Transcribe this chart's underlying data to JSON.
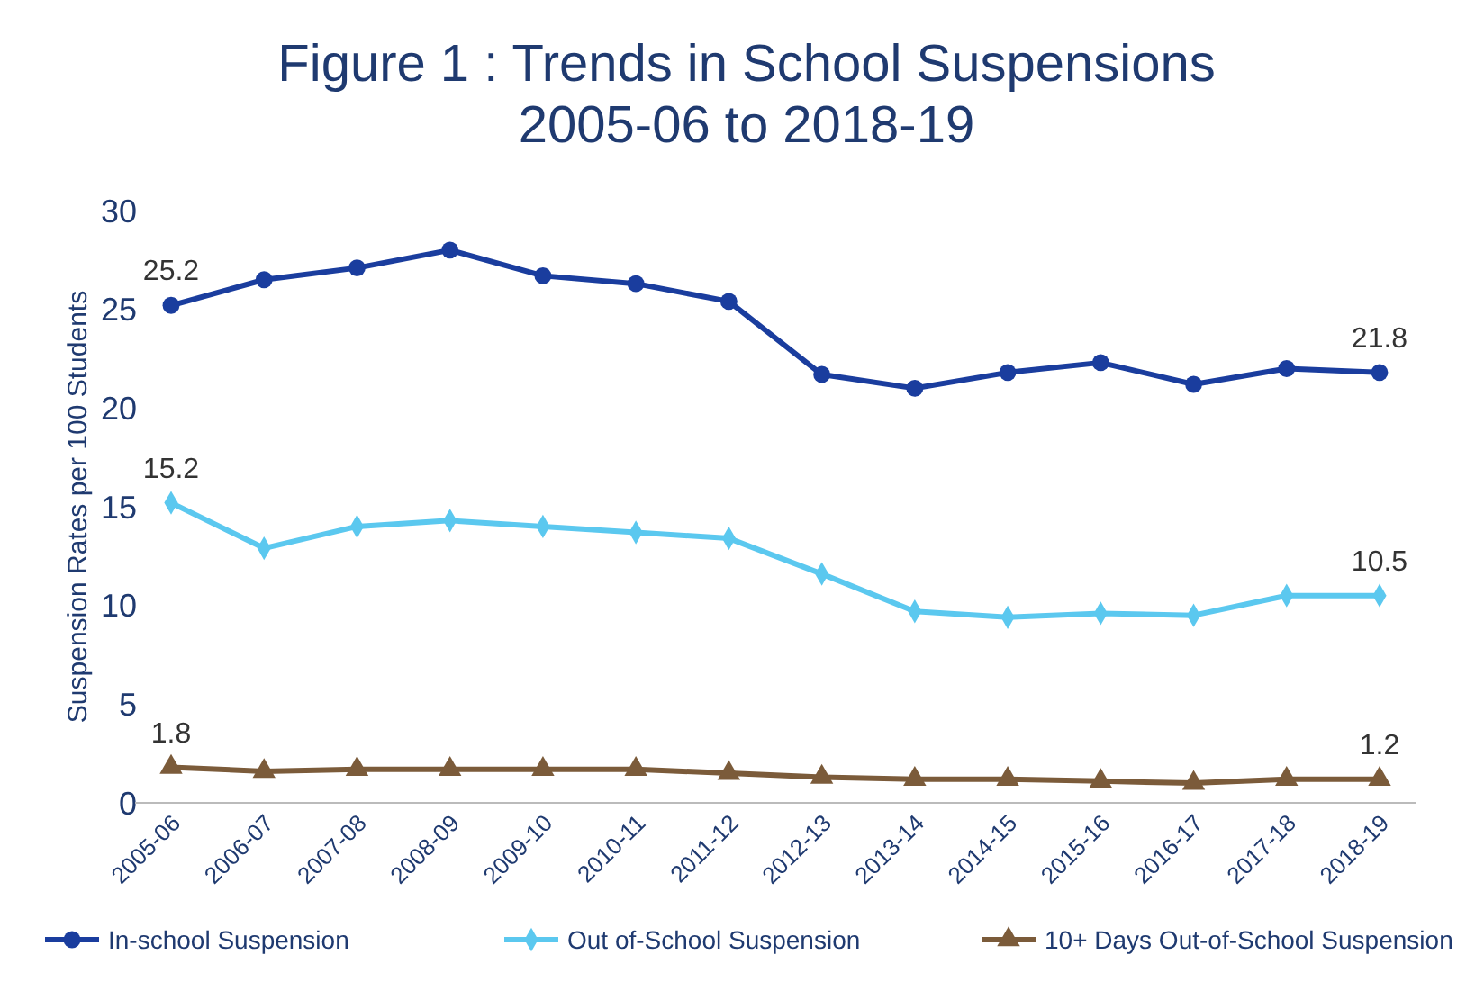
{
  "chart_data": {
    "type": "line",
    "title": "Figure 1 : Trends in School Suspensions\n2005-06 to 2018-19",
    "ylabel": "Suspension Rates per 100 Students",
    "categories": [
      "2005-06",
      "2006-07",
      "2007-08",
      "2008-09",
      "2009-10",
      "2010-11",
      "2011-12",
      "2012-13",
      "2013-14",
      "2014-15",
      "2015-16",
      "2016-17",
      "2017-18",
      "2018-19"
    ],
    "series": [
      {
        "name": "In-school Suspension",
        "color": "#1a3d9e",
        "marker": "circle",
        "values": [
          25.2,
          26.5,
          27.1,
          28.0,
          26.7,
          26.3,
          25.4,
          21.7,
          21.0,
          21.8,
          22.3,
          21.2,
          22.0,
          21.8
        ],
        "value_labels": [
          "25.2",
          null,
          null,
          null,
          null,
          null,
          null,
          null,
          null,
          null,
          null,
          null,
          null,
          "21.8"
        ]
      },
      {
        "name": "Out of-School Suspension",
        "color": "#5bc8ef",
        "marker": "diamond",
        "values": [
          15.2,
          12.9,
          14.0,
          14.3,
          14.0,
          13.7,
          13.4,
          11.6,
          9.7,
          9.4,
          9.6,
          9.5,
          10.5,
          10.5
        ],
        "value_labels": [
          "15.2",
          null,
          null,
          null,
          null,
          null,
          null,
          null,
          null,
          null,
          null,
          null,
          null,
          "10.5"
        ]
      },
      {
        "name": "10+ Days Out-of-School Suspension",
        "color": "#7b5b3a",
        "marker": "triangle",
        "values": [
          1.8,
          1.6,
          1.7,
          1.7,
          1.7,
          1.7,
          1.5,
          1.3,
          1.2,
          1.2,
          1.1,
          1.0,
          1.2,
          1.2
        ],
        "value_labels": [
          "1.8",
          null,
          null,
          null,
          null,
          null,
          null,
          null,
          null,
          null,
          null,
          null,
          null,
          "1.2"
        ]
      }
    ],
    "ylim": [
      0,
      30
    ],
    "yticks": [
      0,
      5,
      10,
      15,
      20,
      25,
      30
    ],
    "grid": false,
    "legend": "bottom",
    "line_style": "solid"
  }
}
